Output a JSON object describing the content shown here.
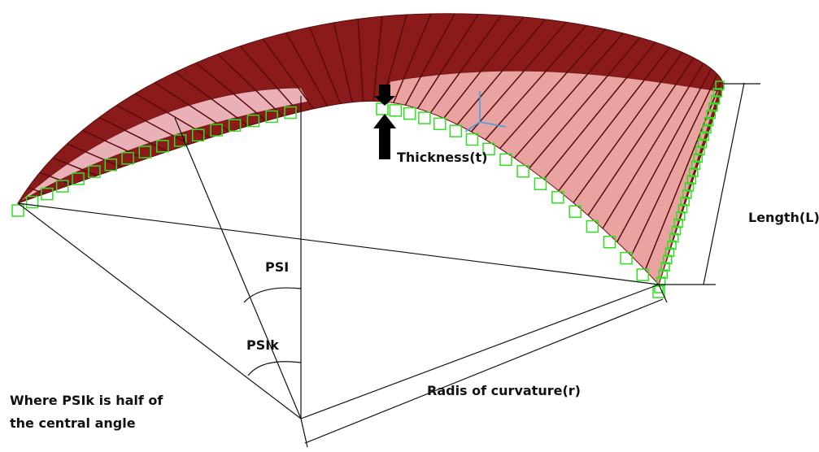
{
  "labels": {
    "thickness": "Thickness(t)",
    "length": "Length(L)",
    "psi": "PSI",
    "psik": "PSIk",
    "radius": "Radis of curvature(r)"
  },
  "note": [
    "Where PSIk is half of",
    "the central angle"
  ]
}
